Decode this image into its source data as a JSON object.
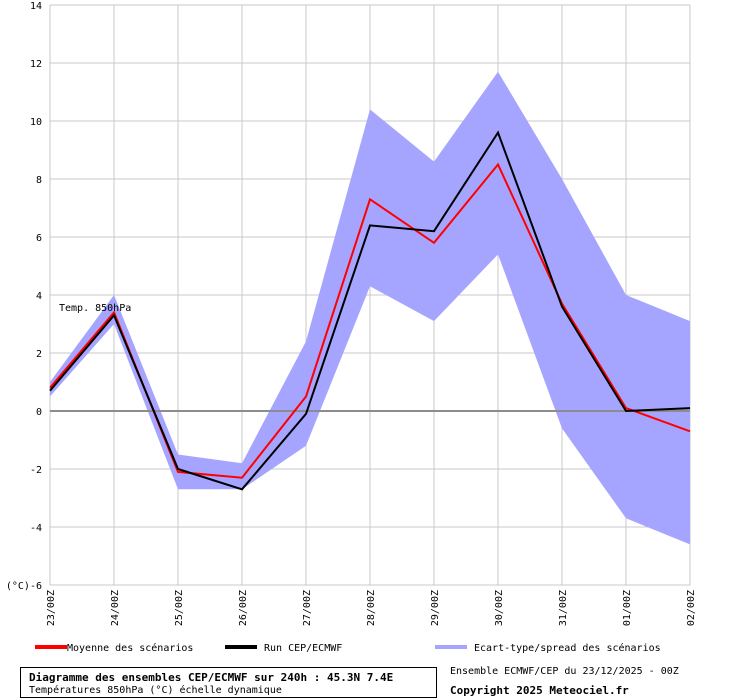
{
  "chart_data": {
    "type": "line",
    "x_categories": [
      "23/00Z",
      "24/00Z",
      "25/00Z",
      "26/00Z",
      "27/00Z",
      "28/00Z",
      "29/00Z",
      "30/00Z",
      "31/00Z",
      "01/00Z",
      "02/00Z"
    ],
    "y_ticks": [
      "14",
      "12",
      "10",
      "8",
      "6",
      "4",
      "2",
      "0",
      "-2",
      "-4",
      "(°C)-6"
    ],
    "ylim": [
      -6,
      14
    ],
    "grid": true,
    "inline_label": "Temp. 850hPa",
    "series": [
      {
        "name": "Moyenne des scénarios",
        "color": "#ff0000",
        "x": [
          0,
          1,
          2,
          3,
          4,
          5,
          6,
          7,
          8,
          9,
          10
        ],
        "values": [
          0.8,
          3.4,
          -2.1,
          -2.3,
          0.5,
          7.3,
          5.8,
          8.5,
          3.7,
          0.1,
          -0.7
        ]
      },
      {
        "name": "Run CEP/ECMWF",
        "color": "#000000",
        "x": [
          0,
          1,
          2,
          3,
          4,
          5,
          6,
          7,
          8,
          9,
          10
        ],
        "values": [
          0.7,
          3.3,
          -2.0,
          -2.7,
          -0.1,
          6.4,
          6.2,
          9.6,
          3.6,
          0.0,
          0.1
        ]
      }
    ],
    "spread": {
      "name": "Ecart-type/spread des scénarios",
      "color": "#a5a5ff",
      "x": [
        0,
        1,
        2,
        3,
        4,
        5,
        6,
        7,
        8,
        9,
        10
      ],
      "upper": [
        1.0,
        4.0,
        -1.5,
        -1.8,
        2.4,
        10.4,
        8.6,
        11.7,
        8.0,
        4.0,
        3.1
      ],
      "lower": [
        0.5,
        3.0,
        -2.7,
        -2.7,
        -1.2,
        4.3,
        3.1,
        5.4,
        -0.6,
        -3.7,
        -4.6
      ]
    },
    "zero_line": 0
  },
  "legend": [
    {
      "label": "Moyenne des scénarios",
      "color": "#ff0000"
    },
    {
      "label": "Run CEP/ECMWF",
      "color": "#000000"
    },
    {
      "label": "Ecart-type/spread des scénarios",
      "color": "#a5a5ff"
    }
  ],
  "info": {
    "title": "Diagramme des ensembles CEP/ECMWF sur 240h : 45.3N 7.4E",
    "subtitle": "Températures 850hPa (°C) échelle dynamique",
    "run": "Ensemble ECMWF/CEP du 23/12/2025 - 00Z",
    "copyright": "Copyright 2025 Meteociel.fr"
  }
}
